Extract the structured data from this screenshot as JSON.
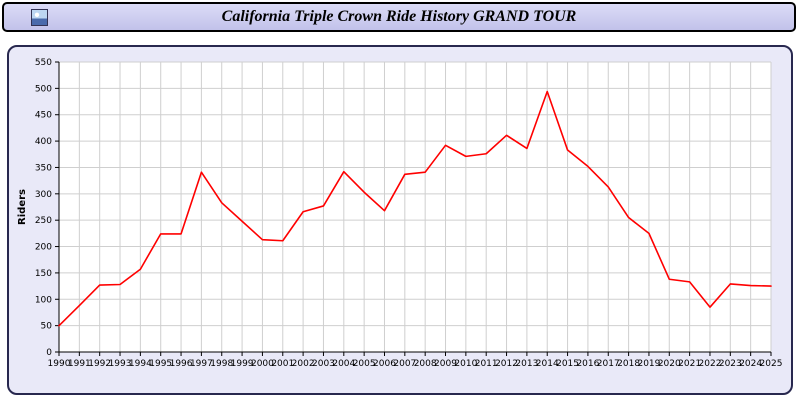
{
  "header": {
    "title": "California Triple Crown Ride History GRAND TOUR"
  },
  "icons": {
    "logo": "photo-logo-icon"
  },
  "colors": {
    "header_bg": "#cfcff0",
    "header_border": "#000000",
    "panel_bg": "#e9e9f8",
    "panel_border": "#28284f",
    "plot_bg": "#ffffff",
    "grid": "#cfcfcf",
    "axis": "#000000",
    "line": "#ff0000"
  },
  "chart_data": {
    "type": "line",
    "title": "California Triple Crown Ride History GRAND TOUR",
    "xlabel": "",
    "ylabel": "Riders",
    "ylim": [
      0,
      550
    ],
    "ytick_step": 50,
    "grid": true,
    "legend": "none",
    "x": [
      1990,
      1991,
      1992,
      1993,
      1994,
      1995,
      1996,
      1997,
      1998,
      1999,
      2000,
      2001,
      2002,
      2003,
      2004,
      2005,
      2006,
      2007,
      2008,
      2009,
      2010,
      2011,
      2012,
      2013,
      2014,
      2015,
      2016,
      2017,
      2018,
      2019,
      2020,
      2021,
      2022,
      2023,
      2024,
      2025
    ],
    "series": [
      {
        "name": "Riders",
        "color": "#ff0000",
        "values": [
          50,
          88,
          127,
          128,
          157,
          224,
          224,
          341,
          283,
          248,
          213,
          211,
          266,
          277,
          342,
          303,
          268,
          337,
          341,
          392,
          371,
          376,
          411,
          386,
          494,
          383,
          352,
          313,
          255,
          225,
          138,
          133,
          85,
          129,
          126,
          125
        ]
      }
    ]
  }
}
